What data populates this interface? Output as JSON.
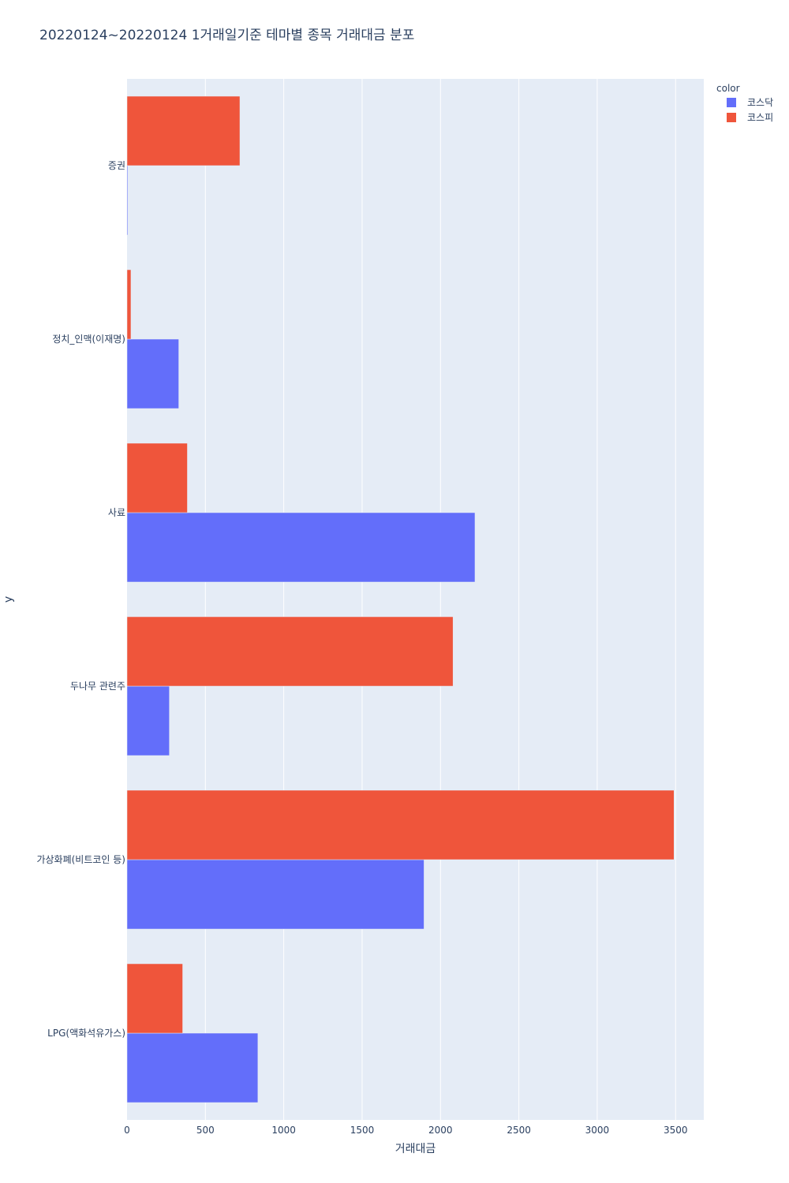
{
  "chart_data": {
    "type": "bar",
    "orientation": "horizontal",
    "barmode": "group",
    "title": "20220124~20220124 1거래일기준 테마별 종목 거래대금 분포",
    "xlabel": "거래대금",
    "ylabel": "y",
    "xlim": [
      0,
      3680
    ],
    "xticks": [
      0,
      500,
      1000,
      1500,
      2000,
      2500,
      3000,
      3500
    ],
    "xtick_labels": [
      "0",
      "500",
      "1000",
      "1500",
      "2000",
      "2500",
      "3000",
      "3500"
    ],
    "grid": true,
    "categories": [
      "증권",
      "정치_인맥(이재명)",
      "사료",
      "두나무 관련주",
      "가상화폐(비트코인 등)",
      "LPG(액화석유가스)"
    ],
    "series": [
      {
        "name": "코스닥",
        "color": "#636efa",
        "values": [
          5,
          330,
          2220,
          270,
          1895,
          835
        ]
      },
      {
        "name": "코스피",
        "color": "#ef553b",
        "values": [
          720,
          25,
          385,
          2080,
          3490,
          355
        ]
      }
    ],
    "legend": {
      "title": "color",
      "position": "top-right"
    }
  }
}
